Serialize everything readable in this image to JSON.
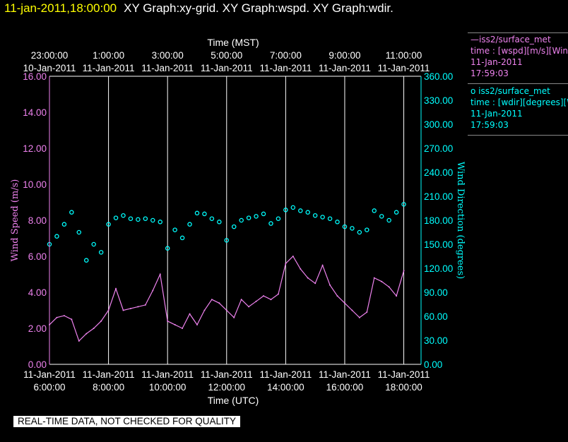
{
  "header": {
    "timestamp": "11-jan-2011,18:00:00",
    "graphs": "XY Graph:xy-grid.  XY Graph:wspd.  XY Graph:wdir."
  },
  "footer": {
    "notice": "REAL-TIME DATA, NOT CHECKED FOR QUALITY"
  },
  "legend": {
    "wspd": {
      "line": "—iss2/surface_met",
      "var": "time : [wspd][m/s][Wind",
      "date": "11-Jan-2011",
      "time": "17:59:03"
    },
    "wdir": {
      "marker": "o  iss2/surface_met",
      "var": "time : [wdir][degrees][Wind",
      "date": "11-Jan-2011",
      "time": "17:59:03"
    }
  },
  "colors": {
    "wspd": "#ee82ee",
    "wdir": "#00ffff",
    "title_timestamp": "#ffff00",
    "grid": "#ffffff"
  },
  "chart_data": {
    "type": "line",
    "title": "XY Graph:xy-grid.  XY Graph:wspd.  XY Graph:wdir.",
    "xlabel": "Time (UTC)",
    "x2label": "Time (MST)",
    "ylabel": "Wind Speed (m/s)",
    "y2label": "Wind Direction (degrees)",
    "ylim": [
      0,
      16
    ],
    "y2lim": [
      0,
      360
    ],
    "xlim": [
      "11-Jan-2011 06:00",
      "11-Jan-2011 18:15"
    ],
    "grid": "vertical",
    "x_ticks": [
      {
        "hour": 6,
        "date": "11-Jan-2011",
        "time": "6:00:00",
        "mst_date": "10-Jan-2011",
        "mst_time": "23:00:00"
      },
      {
        "hour": 8,
        "date": "11-Jan-2011",
        "time": "8:00:00",
        "mst_date": "11-Jan-2011",
        "mst_time": "1:00:00"
      },
      {
        "hour": 10,
        "date": "11-Jan-2011",
        "time": "10:00:00",
        "mst_date": "11-Jan-2011",
        "mst_time": "3:00:00"
      },
      {
        "hour": 12,
        "date": "11-Jan-2011",
        "time": "12:00:00",
        "mst_date": "11-Jan-2011",
        "mst_time": "5:00:00"
      },
      {
        "hour": 14,
        "date": "11-Jan-2011",
        "time": "14:00:00",
        "mst_date": "11-Jan-2011",
        "mst_time": "7:00:00"
      },
      {
        "hour": 16,
        "date": "11-Jan-2011",
        "time": "16:00:00",
        "mst_date": "11-Jan-2011",
        "mst_time": "9:00:00"
      },
      {
        "hour": 18,
        "date": "11-Jan-2011",
        "time": "18:00:00",
        "mst_date": "11-Jan-2011",
        "mst_time": "11:00:00"
      }
    ],
    "y_ticks": [
      "0.00",
      "2.00",
      "4.00",
      "6.00",
      "8.00",
      "10.00",
      "12.00",
      "14.00",
      "16.00"
    ],
    "y2_ticks": [
      "0.00",
      "30.00",
      "60.00",
      "90.00",
      "120.00",
      "150.00",
      "180.00",
      "210.00",
      "240.00",
      "270.00",
      "300.00",
      "330.00",
      "360.00"
    ],
    "series": [
      {
        "name": "iss2/surface_met wspd",
        "style": "line",
        "axis": "left",
        "x_hours": [
          6.0,
          6.25,
          6.5,
          6.75,
          7.0,
          7.25,
          7.5,
          7.75,
          8.0,
          8.25,
          8.5,
          8.75,
          9.0,
          9.25,
          9.5,
          9.75,
          10.0,
          10.25,
          10.5,
          10.75,
          11.0,
          11.25,
          11.5,
          11.75,
          12.0,
          12.25,
          12.5,
          12.75,
          13.0,
          13.25,
          13.5,
          13.75,
          14.0,
          14.25,
          14.5,
          14.75,
          15.0,
          15.25,
          15.5,
          15.75,
          16.0,
          16.25,
          16.5,
          16.75,
          17.0,
          17.25,
          17.5,
          17.75,
          18.0
        ],
        "y": [
          2.2,
          2.6,
          2.7,
          2.5,
          1.3,
          1.7,
          2.0,
          2.4,
          3.0,
          4.2,
          3.0,
          3.1,
          3.2,
          3.3,
          4.1,
          5.0,
          2.4,
          2.2,
          2.0,
          2.8,
          2.2,
          3.0,
          3.6,
          3.4,
          3.0,
          2.6,
          3.6,
          3.2,
          3.5,
          3.8,
          3.6,
          3.9,
          5.6,
          6.0,
          5.3,
          4.8,
          4.5,
          5.5,
          4.4,
          3.8,
          3.4,
          3.0,
          2.6,
          2.9,
          4.8,
          4.6,
          4.3,
          3.8,
          5.2
        ]
      },
      {
        "name": "iss2/surface_met wdir",
        "style": "markers",
        "axis": "right",
        "x_hours": [
          6.0,
          6.25,
          6.5,
          6.75,
          7.0,
          7.25,
          7.5,
          7.75,
          8.0,
          8.25,
          8.5,
          8.75,
          9.0,
          9.25,
          9.5,
          9.75,
          10.0,
          10.25,
          10.5,
          10.75,
          11.0,
          11.25,
          11.5,
          11.75,
          12.0,
          12.25,
          12.5,
          12.75,
          13.0,
          13.25,
          13.5,
          13.75,
          14.0,
          14.25,
          14.5,
          14.75,
          15.0,
          15.25,
          15.5,
          15.75,
          16.0,
          16.25,
          16.5,
          16.75,
          17.0,
          17.25,
          17.5,
          17.75,
          18.0
        ],
        "y": [
          150,
          160,
          175,
          190,
          165,
          130,
          150,
          140,
          175,
          183,
          186,
          182,
          181,
          182,
          180,
          178,
          145,
          168,
          158,
          175,
          189,
          188,
          182,
          178,
          155,
          172,
          180,
          183,
          185,
          188,
          176,
          182,
          193,
          196,
          192,
          190,
          186,
          184,
          182,
          178,
          172,
          170,
          165,
          168,
          192,
          185,
          180,
          190,
          200
        ]
      }
    ]
  }
}
